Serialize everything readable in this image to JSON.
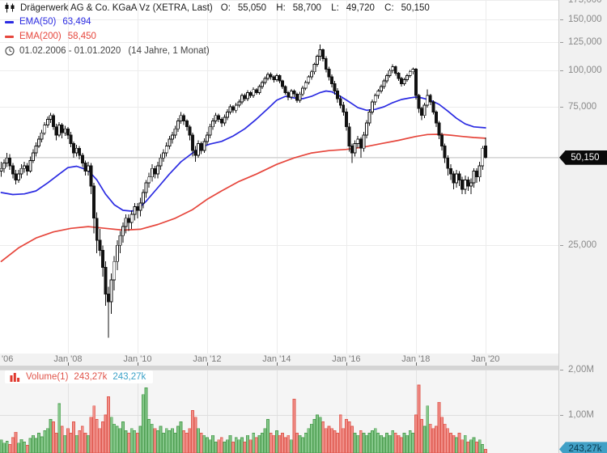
{
  "header": {
    "title": "Drägerwerk AG & Co. KGaA Vz (XETRA, Last)",
    "ohlc": {
      "o_label": "O:",
      "o": "55,050",
      "h_label": "H:",
      "h": "58,700",
      "l_label": "L:",
      "l": "49,720",
      "c_label": "C:",
      "c": "50,150"
    },
    "ema50": {
      "label": "EMA(50)",
      "value": "63,494",
      "color": "#2b2be2"
    },
    "ema200": {
      "label": "EMA(200)",
      "value": "58,450",
      "color": "#e6463c"
    },
    "period": {
      "range": "01.02.2006 - 01.01.2020",
      "duration": "(14 Jahre, 1 Monat)"
    }
  },
  "price_axis": {
    "tick_labels": [
      {
        "text": "175,000",
        "value": 175
      },
      {
        "text": "150,000",
        "value": 150
      },
      {
        "text": "125,000",
        "value": 125
      },
      {
        "text": "100,000",
        "value": 100
      },
      {
        "text": "75,000",
        "value": 75
      },
      {
        "text": "25,000",
        "value": 25
      }
    ],
    "last_price_badge": "50,150",
    "last_price_value": 50.15
  },
  "time_axis": {
    "labels": [
      {
        "text": "'06",
        "candle_index": -1,
        "align": "left"
      },
      {
        "text": "Jan '08",
        "candle_index": 23
      },
      {
        "text": "Jan '10",
        "candle_index": 47
      },
      {
        "text": "Jan '12",
        "candle_index": 71
      },
      {
        "text": "Jan '14",
        "candle_index": 95
      },
      {
        "text": "Jan '16",
        "candle_index": 119
      },
      {
        "text": "Jan '18",
        "candle_index": 143
      },
      {
        "text": "Jan '20",
        "candle_index": 167
      }
    ]
  },
  "volume_pane": {
    "legend": {
      "label": "Volume(1)",
      "value_red": "243,27k",
      "value_cyan": "243,27k"
    },
    "tick_labels": [
      {
        "text": "2,00M",
        "value": 2.0
      },
      {
        "text": "1,00M",
        "value": 1.0
      }
    ],
    "badge": "243,27k",
    "badge_value": 0.24327
  },
  "chart_data": {
    "type": "candlestick+volume",
    "instrument": "Drägerwerk AG & Co. KGaA Vz",
    "exchange": "XETRA",
    "frequency": "monthly",
    "start_month": "2006-02",
    "end_month": "2020-01",
    "y_scale": "log",
    "price_axis_ticks": [
      175,
      150,
      125,
      100,
      75,
      50,
      25
    ],
    "volume_axis_ticks_millions": [
      2.0,
      1.0
    ],
    "last_candle": {
      "open": 55.05,
      "high": 58.7,
      "low": 49.72,
      "close": 50.15
    },
    "ema50_last": 63.494,
    "ema200_last": 58.45,
    "last_volume_millions": 0.24327,
    "candles_ohlc": [
      [
        45,
        48.5,
        43,
        46
      ],
      [
        46,
        49.5,
        44.5,
        48
      ],
      [
        48,
        52,
        46.5,
        50
      ],
      [
        50,
        51.5,
        45.5,
        47
      ],
      [
        47,
        48,
        42.5,
        44
      ],
      [
        44,
        45.5,
        40.5,
        42
      ],
      [
        42,
        45.5,
        41,
        44
      ],
      [
        44,
        47.5,
        42.5,
        46
      ],
      [
        46,
        48.5,
        44.5,
        47
      ],
      [
        47,
        48,
        43.5,
        45
      ],
      [
        45,
        50.5,
        44.5,
        49
      ],
      [
        49,
        53.5,
        48,
        52
      ],
      [
        52,
        56.5,
        50.5,
        55
      ],
      [
        55,
        59.5,
        54,
        58
      ],
      [
        58,
        62.5,
        56.5,
        61
      ],
      [
        61,
        66.5,
        60,
        65
      ],
      [
        65,
        69.5,
        63.5,
        68
      ],
      [
        68,
        71.5,
        66,
        70
      ],
      [
        70,
        71,
        62.5,
        64
      ],
      [
        64,
        65.5,
        57.5,
        60
      ],
      [
        60,
        66.5,
        59,
        65
      ],
      [
        65,
        66,
        58.5,
        61
      ],
      [
        61,
        64.5,
        59.5,
        63
      ],
      [
        63,
        64,
        58,
        60
      ],
      [
        60,
        61.5,
        54.5,
        56
      ],
      [
        56,
        57,
        50,
        52
      ],
      [
        52,
        55.5,
        50.5,
        54
      ],
      [
        54,
        55,
        49.5,
        51
      ],
      [
        51,
        52,
        46.5,
        48
      ],
      [
        48,
        49,
        43.5,
        45
      ],
      [
        45,
        48.5,
        43.5,
        47
      ],
      [
        47,
        48,
        37.5,
        40
      ],
      [
        40,
        41,
        27.5,
        31
      ],
      [
        31,
        32.5,
        23.5,
        26
      ],
      [
        26,
        28.5,
        23,
        24
      ],
      [
        24,
        25,
        19.5,
        21
      ],
      [
        21,
        22,
        15.5,
        17
      ],
      [
        17,
        18,
        12,
        16
      ],
      [
        16,
        20,
        14.5,
        19
      ],
      [
        19,
        23,
        17.5,
        22
      ],
      [
        22,
        26,
        20.5,
        25
      ],
      [
        25,
        28,
        23.5,
        27
      ],
      [
        27,
        30,
        25.5,
        29
      ],
      [
        29,
        32,
        27.5,
        31
      ],
      [
        31,
        32,
        28,
        30
      ],
      [
        30,
        33,
        28.5,
        32
      ],
      [
        32,
        35,
        30.5,
        34
      ],
      [
        34,
        35,
        31,
        33
      ],
      [
        33,
        36.5,
        31.5,
        35
      ],
      [
        35,
        39,
        33.5,
        38
      ],
      [
        38,
        42,
        36.5,
        41
      ],
      [
        41,
        44.5,
        39.5,
        43
      ],
      [
        43,
        47.5,
        41.5,
        46
      ],
      [
        46,
        47,
        42.5,
        44
      ],
      [
        44,
        48.5,
        42.5,
        47
      ],
      [
        47,
        51.5,
        45.5,
        50
      ],
      [
        50,
        53.5,
        48.5,
        52
      ],
      [
        52,
        56.5,
        50.5,
        55
      ],
      [
        55,
        59.5,
        53.5,
        58
      ],
      [
        58,
        61.5,
        56,
        60
      ],
      [
        60,
        64.5,
        58.5,
        63
      ],
      [
        63,
        68.5,
        61.5,
        67
      ],
      [
        67,
        72,
        65.5,
        70
      ],
      [
        70,
        71,
        65,
        67
      ],
      [
        67,
        68,
        62,
        64
      ],
      [
        64,
        65,
        57.5,
        60
      ],
      [
        60,
        61,
        50.5,
        53
      ],
      [
        53,
        55,
        48.5,
        51
      ],
      [
        51,
        57.5,
        50,
        56
      ],
      [
        56,
        57,
        51.5,
        53
      ],
      [
        53,
        58.5,
        52,
        57
      ],
      [
        57,
        61.5,
        55.5,
        60
      ],
      [
        60,
        65.5,
        58.5,
        64
      ],
      [
        64,
        68.5,
        62.5,
        67
      ],
      [
        67,
        71.5,
        65.5,
        70
      ],
      [
        70,
        71,
        66.5,
        68
      ],
      [
        68,
        69,
        64,
        66
      ],
      [
        66,
        70.5,
        64.5,
        69
      ],
      [
        69,
        73.5,
        67.5,
        72
      ],
      [
        72,
        76.5,
        70.5,
        75
      ],
      [
        75,
        76,
        71.5,
        73
      ],
      [
        73,
        77.5,
        71.5,
        76
      ],
      [
        76,
        79.5,
        74.5,
        78
      ],
      [
        78,
        83.5,
        76.5,
        82
      ],
      [
        82,
        83.5,
        78.5,
        80
      ],
      [
        80,
        85.5,
        78.5,
        84
      ],
      [
        84,
        85,
        80.5,
        82
      ],
      [
        82,
        87.5,
        80.5,
        86
      ],
      [
        86,
        87,
        82.5,
        84
      ],
      [
        84,
        89.5,
        82.5,
        88
      ],
      [
        88,
        92.5,
        86.5,
        91
      ],
      [
        91,
        95.5,
        89.5,
        94
      ],
      [
        94,
        98.5,
        92.5,
        97
      ],
      [
        97,
        98.5,
        93,
        95
      ],
      [
        95,
        96.5,
        91,
        93
      ],
      [
        93,
        97.5,
        91.5,
        96
      ],
      [
        96,
        97,
        90.5,
        92
      ],
      [
        92,
        93,
        86.5,
        88
      ],
      [
        88,
        89,
        82.5,
        84
      ],
      [
        84,
        85,
        79,
        81
      ],
      [
        81,
        86.5,
        79.5,
        85
      ],
      [
        85,
        86,
        81,
        83
      ],
      [
        83,
        84,
        77.5,
        79
      ],
      [
        79,
        84.5,
        77.5,
        83
      ],
      [
        83,
        88.5,
        81.5,
        87
      ],
      [
        87,
        92.5,
        85.5,
        91
      ],
      [
        91,
        96.5,
        89.5,
        95
      ],
      [
        95,
        100.5,
        93,
        99
      ],
      [
        99,
        106.5,
        97,
        105
      ],
      [
        105,
        113.5,
        103,
        112
      ],
      [
        112,
        123,
        108,
        118
      ],
      [
        118,
        119,
        107.5,
        110
      ],
      [
        110,
        112,
        98.5,
        101
      ],
      [
        101,
        103,
        92.5,
        95
      ],
      [
        95,
        97,
        87.5,
        90
      ],
      [
        90,
        92,
        82.5,
        85
      ],
      [
        85,
        87,
        77.5,
        80
      ],
      [
        80,
        82,
        74,
        76
      ],
      [
        76,
        78,
        70,
        72
      ],
      [
        72,
        74,
        62,
        64
      ],
      [
        64,
        66,
        52.5,
        55
      ],
      [
        55,
        56,
        48,
        52
      ],
      [
        52,
        57.5,
        50.5,
        56
      ],
      [
        56,
        59.5,
        54,
        58
      ],
      [
        58,
        59,
        50,
        54
      ],
      [
        54,
        61.5,
        52.5,
        60
      ],
      [
        60,
        67.5,
        58.5,
        66
      ],
      [
        66,
        73.5,
        64.5,
        72
      ],
      [
        72,
        79.5,
        70.5,
        78
      ],
      [
        78,
        83.5,
        76,
        82
      ],
      [
        82,
        86.5,
        80,
        85
      ],
      [
        85,
        89.5,
        83.5,
        88
      ],
      [
        88,
        93.5,
        86.5,
        92
      ],
      [
        92,
        97.5,
        90.5,
        96
      ],
      [
        96,
        101.5,
        94.5,
        100
      ],
      [
        100,
        105,
        98,
        103
      ],
      [
        103,
        104,
        96,
        98
      ],
      [
        98,
        99,
        92,
        94
      ],
      [
        94,
        95,
        88,
        90
      ],
      [
        90,
        94.5,
        88.5,
        93
      ],
      [
        93,
        97.5,
        91.5,
        96
      ],
      [
        96,
        100.5,
        94.5,
        99
      ],
      [
        99,
        102.5,
        97,
        101
      ],
      [
        101,
        102,
        79.5,
        82
      ],
      [
        82,
        83,
        71.5,
        74
      ],
      [
        74,
        75,
        67.5,
        70
      ],
      [
        70,
        77.5,
        68.5,
        76
      ],
      [
        76,
        86,
        74.5,
        82
      ],
      [
        82,
        83,
        76,
        78
      ],
      [
        78,
        79,
        70.5,
        72
      ],
      [
        72,
        73,
        64,
        66
      ],
      [
        66,
        67,
        58,
        60
      ],
      [
        60,
        61,
        53,
        55
      ],
      [
        55,
        56,
        48,
        50
      ],
      [
        50,
        51,
        43.5,
        46
      ],
      [
        46,
        47.5,
        42,
        44
      ],
      [
        44,
        45,
        39,
        41
      ],
      [
        41,
        45.5,
        39.5,
        44
      ],
      [
        44,
        45,
        40,
        42
      ],
      [
        42,
        43,
        37.5,
        39
      ],
      [
        39,
        43.5,
        37.5,
        42
      ],
      [
        42,
        43,
        38.5,
        40
      ],
      [
        40,
        42.5,
        37.5,
        41
      ],
      [
        41,
        46,
        39.5,
        45
      ],
      [
        45,
        46,
        41,
        43
      ],
      [
        43,
        48.5,
        41.5,
        47
      ],
      [
        47,
        55,
        45.5,
        54
      ],
      [
        55.05,
        58.7,
        49.72,
        50.15
      ]
    ],
    "volumes_millions": [
      0.45,
      0.38,
      0.42,
      0.35,
      0.5,
      0.62,
      0.38,
      0.46,
      0.4,
      0.33,
      0.48,
      0.55,
      0.48,
      0.6,
      0.52,
      0.65,
      0.7,
      0.9,
      0.85,
      0.6,
      1.25,
      0.75,
      0.55,
      0.7,
      0.6,
      0.85,
      0.55,
      0.65,
      0.75,
      0.6,
      0.55,
      0.95,
      1.2,
      0.9,
      0.7,
      0.85,
      1.0,
      1.4,
      0.95,
      0.8,
      0.75,
      0.7,
      0.85,
      0.65,
      0.6,
      0.7,
      0.65,
      0.6,
      0.75,
      1.45,
      1.6,
      0.9,
      0.8,
      0.7,
      0.65,
      0.75,
      0.6,
      0.7,
      0.65,
      0.7,
      0.6,
      0.75,
      0.85,
      0.65,
      0.6,
      0.7,
      1.1,
      0.95,
      0.7,
      0.6,
      0.55,
      0.5,
      0.45,
      0.55,
      0.4,
      0.45,
      0.5,
      0.4,
      0.45,
      0.55,
      0.4,
      0.5,
      0.45,
      0.5,
      0.4,
      0.55,
      0.45,
      0.6,
      0.5,
      0.55,
      0.6,
      0.7,
      0.9,
      0.6,
      0.55,
      0.65,
      0.55,
      0.6,
      0.5,
      0.55,
      0.45,
      1.35,
      0.6,
      0.55,
      0.5,
      0.6,
      0.7,
      0.8,
      0.9,
      1.0,
      0.95,
      0.85,
      0.7,
      0.75,
      0.7,
      0.65,
      0.6,
      1.0,
      0.7,
      0.9,
      0.85,
      0.75,
      0.6,
      0.55,
      0.65,
      0.6,
      0.55,
      0.6,
      0.65,
      0.7,
      0.6,
      0.55,
      0.5,
      0.6,
      0.55,
      0.65,
      0.6,
      0.55,
      0.5,
      0.6,
      0.55,
      0.65,
      0.6,
      1.0,
      1.66,
      0.9,
      0.75,
      1.2,
      0.8,
      0.7,
      0.75,
      1.28,
      0.95,
      0.8,
      0.7,
      0.6,
      0.55,
      0.5,
      0.6,
      0.45,
      0.55,
      0.4,
      0.45,
      0.5,
      0.4,
      0.45,
      0.35,
      0.24327
    ],
    "ema50_points": [
      [
        0,
        38
      ],
      [
        4,
        37.4
      ],
      [
        8,
        37.6
      ],
      [
        12,
        38.5
      ],
      [
        16,
        41
      ],
      [
        20,
        44
      ],
      [
        23,
        46.3
      ],
      [
        26,
        46.8
      ],
      [
        30,
        45.3
      ],
      [
        33,
        42
      ],
      [
        36,
        37.5
      ],
      [
        39,
        34.5
      ],
      [
        42,
        33
      ],
      [
        45,
        32.8
      ],
      [
        47,
        33.2
      ],
      [
        50,
        35.5
      ],
      [
        54,
        39.5
      ],
      [
        58,
        44
      ],
      [
        62,
        48.5
      ],
      [
        66,
        52
      ],
      [
        69,
        54.5
      ],
      [
        72,
        55.8
      ],
      [
        76,
        57
      ],
      [
        80,
        59.5
      ],
      [
        84,
        63
      ],
      [
        88,
        68
      ],
      [
        92,
        74
      ],
      [
        95,
        79
      ],
      [
        98,
        81.5
      ],
      [
        101,
        80.5
      ],
      [
        104,
        80
      ],
      [
        107,
        81.5
      ],
      [
        110,
        84
      ],
      [
        112,
        85
      ],
      [
        114,
        84.5
      ],
      [
        117,
        81.5
      ],
      [
        120,
        78
      ],
      [
        123,
        74.5
      ],
      [
        126,
        73
      ],
      [
        129,
        73.5
      ],
      [
        132,
        75
      ],
      [
        135,
        77.5
      ],
      [
        138,
        79.5
      ],
      [
        141,
        80.5
      ],
      [
        143,
        81
      ],
      [
        145,
        80.5
      ],
      [
        148,
        79
      ],
      [
        151,
        76.5
      ],
      [
        154,
        72.5
      ],
      [
        157,
        68.5
      ],
      [
        160,
        65.5
      ],
      [
        163,
        64
      ],
      [
        167,
        63.494
      ]
    ],
    "ema200_points": [
      [
        0,
        22
      ],
      [
        6,
        24.5
      ],
      [
        12,
        26.5
      ],
      [
        18,
        27.8
      ],
      [
        24,
        28.6
      ],
      [
        30,
        29
      ],
      [
        36,
        28.6
      ],
      [
        42,
        28.2
      ],
      [
        48,
        28.4
      ],
      [
        54,
        29.5
      ],
      [
        60,
        31
      ],
      [
        66,
        33.2
      ],
      [
        71,
        36
      ],
      [
        76,
        38.5
      ],
      [
        82,
        41.5
      ],
      [
        88,
        44
      ],
      [
        95,
        47.5
      ],
      [
        101,
        50
      ],
      [
        107,
        52
      ],
      [
        113,
        53
      ],
      [
        119,
        53.5
      ],
      [
        125,
        54.5
      ],
      [
        131,
        56
      ],
      [
        137,
        57.5
      ],
      [
        143,
        59.3
      ],
      [
        147,
        60.2
      ],
      [
        151,
        60.3
      ],
      [
        155,
        59.9
      ],
      [
        159,
        59.3
      ],
      [
        163,
        58.8
      ],
      [
        167,
        58.45
      ]
    ],
    "colors": {
      "candle_down": "#111111",
      "candle_up_fill": "#ffffff",
      "ema50": "#2b2be2",
      "ema200": "#e6463c",
      "volume_up_fill": "#85c78a",
      "volume_up_stroke": "#4f9f53",
      "volume_down_fill": "#f1908a",
      "volume_down_stroke": "#df5a50",
      "price_badge_bg": "#0a0a0a",
      "volume_badge_bg": "#41a0c6"
    }
  }
}
